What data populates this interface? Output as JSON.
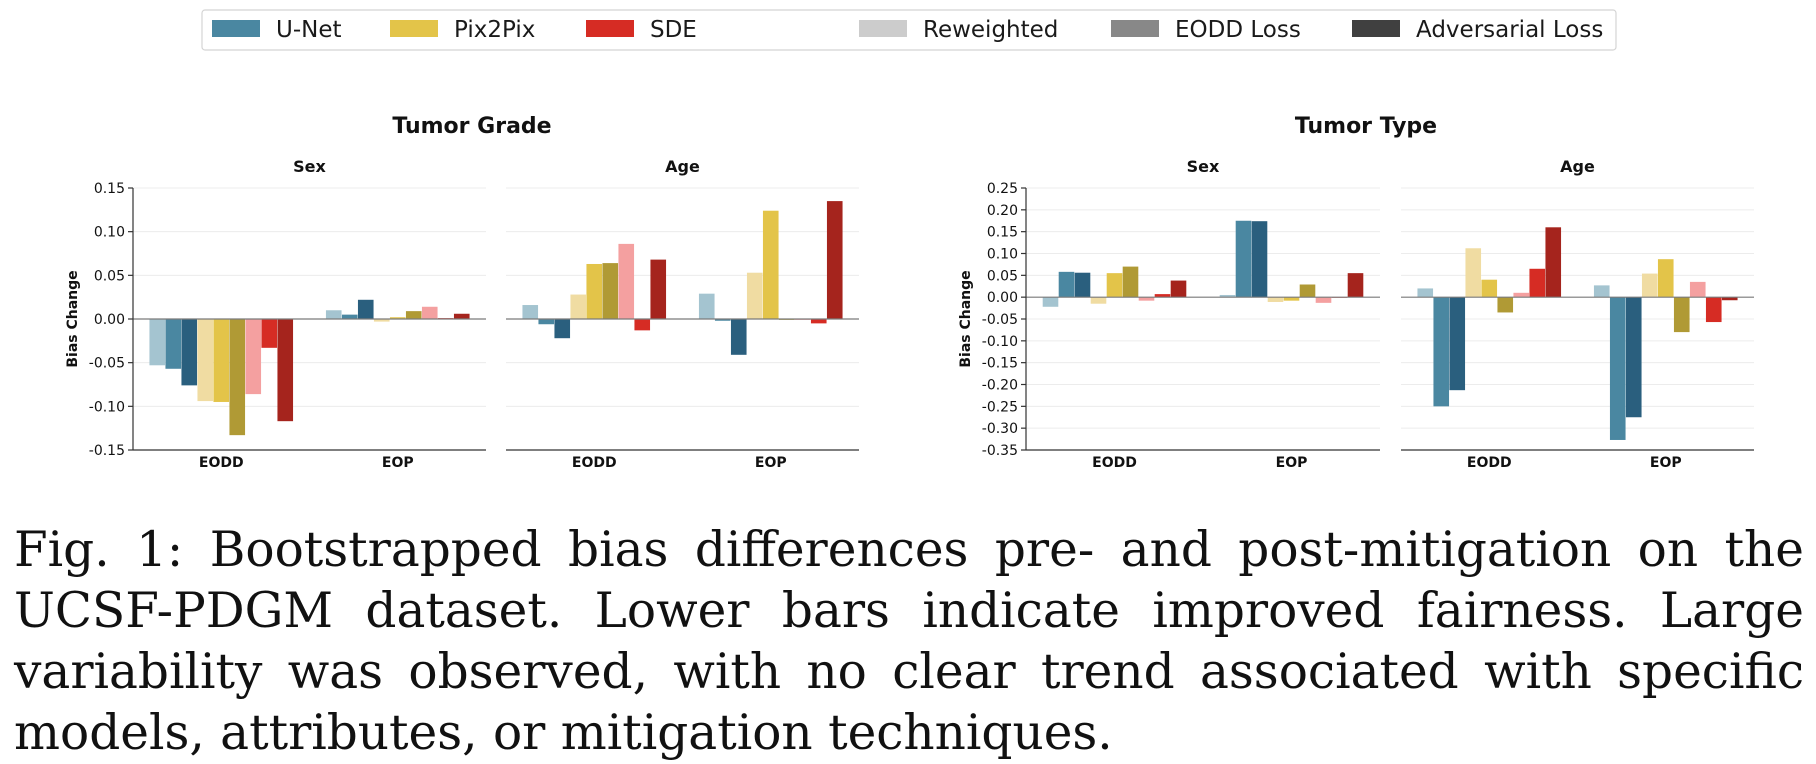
{
  "legend": {
    "models": [
      {
        "name": "U-Net",
        "color": "#4a87a1"
      },
      {
        "name": "Pix2Pix",
        "color": "#e3c449"
      },
      {
        "name": "SDE",
        "color": "#d62c24"
      }
    ],
    "methods": [
      {
        "name": "Reweighted",
        "color": "#cccccc"
      },
      {
        "name": "EODD Loss",
        "color": "#888888"
      },
      {
        "name": "Adversarial Loss",
        "color": "#404040"
      }
    ]
  },
  "caption": "Fig. 1: Bootstrapped bias differences pre- and post-mitigation on the UCSF-PDGM dataset. Lower bars indicate improved fairness. Large variability was observed, with no clear trend associated with specific models, attributes, or mitigation techniques.",
  "chart_data": [
    {
      "type": "bar",
      "group_title": "Tumor Grade",
      "title": "Sex",
      "ylabel": "Bias Change",
      "ylim": [
        -0.15,
        0.15
      ],
      "yticks": [
        "-0.15",
        "-0.10",
        "-0.05",
        "0.00",
        "0.05",
        "0.10",
        "0.15"
      ],
      "categories": [
        "EODD",
        "EOP"
      ],
      "series": [
        {
          "model": "U-Net",
          "method": "Reweighted",
          "color": "#a4c4d0",
          "values": [
            -0.053,
            0.01
          ]
        },
        {
          "model": "U-Net",
          "method": "EODD Loss",
          "color": "#4a87a1",
          "values": [
            -0.057,
            0.005
          ]
        },
        {
          "model": "U-Net",
          "method": "Adversarial Loss",
          "color": "#2a5f7e",
          "values": [
            -0.076,
            0.022
          ]
        },
        {
          "model": "Pix2Pix",
          "method": "Reweighted",
          "color": "#f0dca2",
          "values": [
            -0.094,
            -0.003
          ]
        },
        {
          "model": "Pix2Pix",
          "method": "EODD Loss",
          "color": "#e3c449",
          "values": [
            -0.095,
            0.002
          ]
        },
        {
          "model": "Pix2Pix",
          "method": "Adversarial Loss",
          "color": "#b09a35",
          "values": [
            -0.133,
            0.009
          ]
        },
        {
          "model": "SDE",
          "method": "Reweighted",
          "color": "#f4a0a0",
          "values": [
            -0.086,
            0.014
          ]
        },
        {
          "model": "SDE",
          "method": "EODD Loss",
          "color": "#d62c24",
          "values": [
            -0.033,
            0.001
          ]
        },
        {
          "model": "SDE",
          "method": "Adversarial Loss",
          "color": "#a5241d",
          "values": [
            -0.117,
            0.006
          ]
        }
      ]
    },
    {
      "type": "bar",
      "group_title": "Tumor Grade",
      "title": "Age",
      "ylabel": "",
      "ylim": [
        -0.15,
        0.15
      ],
      "yticks": [],
      "categories": [
        "EODD",
        "EOP"
      ],
      "series": [
        {
          "model": "U-Net",
          "method": "Reweighted",
          "color": "#a4c4d0",
          "values": [
            0.016,
            0.029
          ]
        },
        {
          "model": "U-Net",
          "method": "EODD Loss",
          "color": "#4a87a1",
          "values": [
            -0.006,
            -0.002
          ]
        },
        {
          "model": "U-Net",
          "method": "Adversarial Loss",
          "color": "#2a5f7e",
          "values": [
            -0.022,
            -0.041
          ]
        },
        {
          "model": "Pix2Pix",
          "method": "Reweighted",
          "color": "#f0dca2",
          "values": [
            0.028,
            0.053
          ]
        },
        {
          "model": "Pix2Pix",
          "method": "EODD Loss",
          "color": "#e3c449",
          "values": [
            0.063,
            0.124
          ]
        },
        {
          "model": "Pix2Pix",
          "method": "Adversarial Loss",
          "color": "#b09a35",
          "values": [
            0.064,
            -0.001
          ]
        },
        {
          "model": "SDE",
          "method": "Reweighted",
          "color": "#f4a0a0",
          "values": [
            0.086,
            -0.001
          ]
        },
        {
          "model": "SDE",
          "method": "EODD Loss",
          "color": "#d62c24",
          "values": [
            -0.013,
            -0.005
          ]
        },
        {
          "model": "SDE",
          "method": "Adversarial Loss",
          "color": "#a5241d",
          "values": [
            0.068,
            0.135
          ]
        }
      ]
    },
    {
      "type": "bar",
      "group_title": "Tumor Type",
      "title": "Sex",
      "ylabel": "Bias Change",
      "ylim": [
        -0.35,
        0.25
      ],
      "yticks": [
        "-0.35",
        "-0.30",
        "-0.25",
        "-0.20",
        "-0.15",
        "-0.10",
        "-0.05",
        "0.00",
        "0.05",
        "0.10",
        "0.15",
        "0.20",
        "0.25"
      ],
      "categories": [
        "EODD",
        "EOP"
      ],
      "series": [
        {
          "model": "U-Net",
          "method": "Reweighted",
          "color": "#a4c4d0",
          "values": [
            -0.022,
            0.005
          ]
        },
        {
          "model": "U-Net",
          "method": "EODD Loss",
          "color": "#4a87a1",
          "values": [
            0.058,
            0.175
          ]
        },
        {
          "model": "U-Net",
          "method": "Adversarial Loss",
          "color": "#2a5f7e",
          "values": [
            0.056,
            0.174
          ]
        },
        {
          "model": "Pix2Pix",
          "method": "Reweighted",
          "color": "#f0dca2",
          "values": [
            -0.015,
            -0.011
          ]
        },
        {
          "model": "Pix2Pix",
          "method": "EODD Loss",
          "color": "#e3c449",
          "values": [
            0.055,
            -0.008
          ]
        },
        {
          "model": "Pix2Pix",
          "method": "Adversarial Loss",
          "color": "#b09a35",
          "values": [
            0.07,
            0.029
          ]
        },
        {
          "model": "SDE",
          "method": "Reweighted",
          "color": "#f4a0a0",
          "values": [
            -0.008,
            -0.013
          ]
        },
        {
          "model": "SDE",
          "method": "EODD Loss",
          "color": "#d62c24",
          "values": [
            0.007,
            -0.001
          ]
        },
        {
          "model": "SDE",
          "method": "Adversarial Loss",
          "color": "#a5241d",
          "values": [
            0.038,
            0.055
          ]
        }
      ]
    },
    {
      "type": "bar",
      "group_title": "Tumor Type",
      "title": "Age",
      "ylabel": "",
      "ylim": [
        -0.35,
        0.25
      ],
      "yticks": [],
      "categories": [
        "EODD",
        "EOP"
      ],
      "series": [
        {
          "model": "U-Net",
          "method": "Reweighted",
          "color": "#a4c4d0",
          "values": [
            0.02,
            0.027
          ]
        },
        {
          "model": "U-Net",
          "method": "EODD Loss",
          "color": "#4a87a1",
          "values": [
            -0.25,
            -0.327
          ]
        },
        {
          "model": "U-Net",
          "method": "Adversarial Loss",
          "color": "#2a5f7e",
          "values": [
            -0.213,
            -0.275
          ]
        },
        {
          "model": "Pix2Pix",
          "method": "Reweighted",
          "color": "#f0dca2",
          "values": [
            0.112,
            0.054
          ]
        },
        {
          "model": "Pix2Pix",
          "method": "EODD Loss",
          "color": "#e3c449",
          "values": [
            0.04,
            0.087
          ]
        },
        {
          "model": "Pix2Pix",
          "method": "Adversarial Loss",
          "color": "#b09a35",
          "values": [
            -0.035,
            -0.08
          ]
        },
        {
          "model": "SDE",
          "method": "Reweighted",
          "color": "#f4a0a0",
          "values": [
            0.01,
            0.035
          ]
        },
        {
          "model": "SDE",
          "method": "EODD Loss",
          "color": "#d62c24",
          "values": [
            0.065,
            -0.057
          ]
        },
        {
          "model": "SDE",
          "method": "Adversarial Loss",
          "color": "#a5241d",
          "values": [
            0.16,
            -0.007
          ]
        }
      ]
    }
  ]
}
